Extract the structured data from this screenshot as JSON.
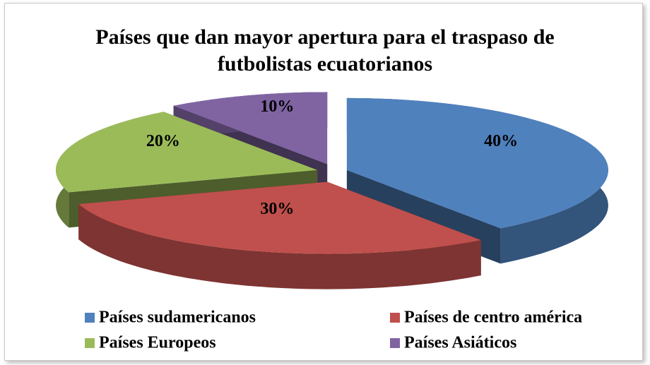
{
  "chart_data": {
    "type": "pie",
    "title": "Países que dan mayor apertura para el traspaso de futbolistas ecuatorianos",
    "categories": [
      "Países sudamericanos",
      "Países de centro américa",
      "Países Europeos",
      "Países Asiáticos"
    ],
    "values": [
      40,
      30,
      20,
      10
    ],
    "value_labels": [
      "40%",
      "30%",
      "20%",
      "10%"
    ],
    "colors": [
      "#4f81bd",
      "#c0504d",
      "#9bbb59",
      "#8064a2"
    ],
    "legend": "bottom"
  }
}
